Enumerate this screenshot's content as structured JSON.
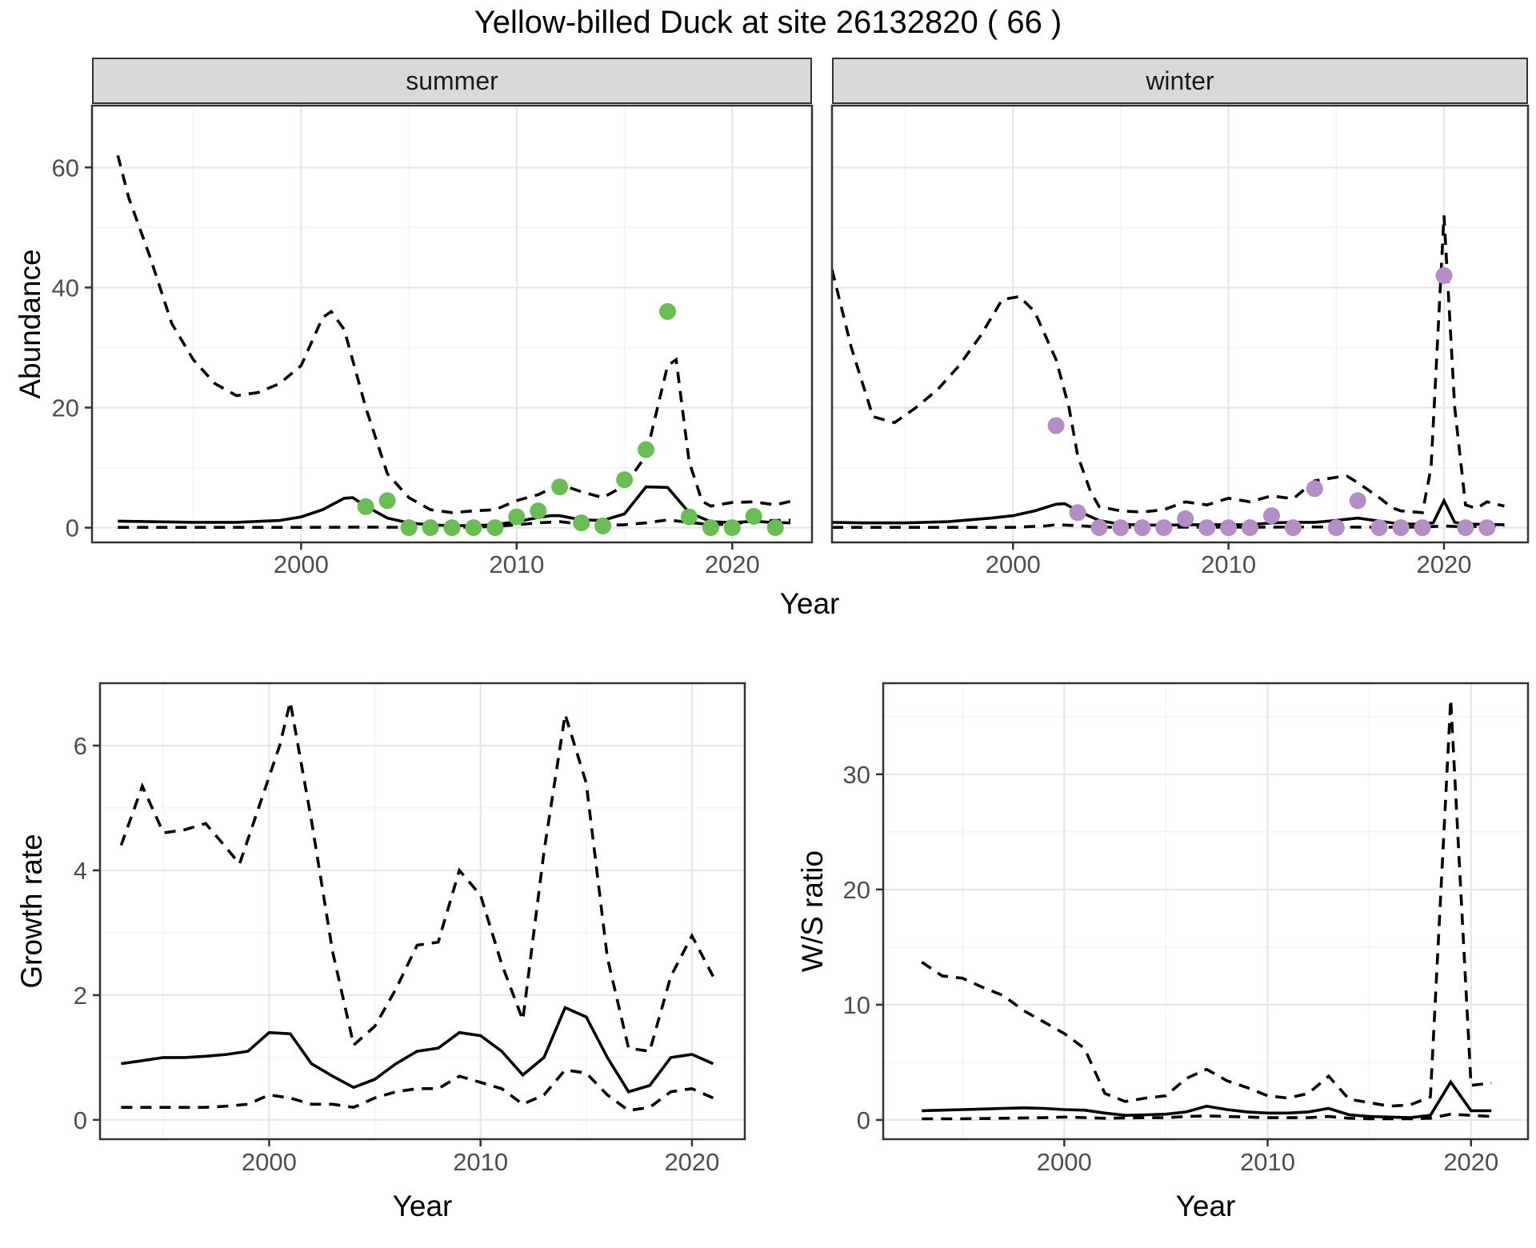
{
  "page": {
    "title": "Yellow-billed Duck at site 26132820 ( 66 )"
  },
  "colors": {
    "summer_point": "#6abd54",
    "winter_point": "#b48cc6",
    "line": "#000000",
    "panel_border": "#333333",
    "grid_major": "#e7e7e7",
    "grid_minor": "#f3f3f3",
    "strip_fill": "#d9d9d9",
    "tick_text": "#4d4d4d"
  },
  "axis_titles": {
    "abundance": "Abundance",
    "year_top": "Year",
    "growth": "Growth rate",
    "year_bottom_left": "Year",
    "ws": "W/S ratio",
    "year_bottom_right": "Year"
  },
  "facets": {
    "summer": "summer",
    "winter": "winter"
  },
  "chart_data": [
    {
      "id": "summer",
      "type": "line",
      "facet_label": "summer",
      "xlabel": "Year",
      "ylabel": "Abundance",
      "xlim": [
        1990.3,
        2023.7
      ],
      "ylim": [
        -2.45,
        70.3
      ],
      "x_ticks": [
        2000,
        2010,
        2020
      ],
      "x_minor": [
        1995,
        2005,
        2015
      ],
      "y_ticks": [
        0,
        20,
        40,
        60
      ],
      "y_minor": [
        10,
        30,
        50
      ],
      "show_y_labels": true,
      "series": [
        {
          "name": "upper_ci",
          "style": "dashed",
          "x": [
            1991.5,
            1992,
            1993,
            1994,
            1995,
            1996,
            1997,
            1998,
            1999,
            2000,
            2001,
            2001.4,
            2002,
            2003,
            2004,
            2005,
            2006,
            2007,
            2008,
            2009,
            2010,
            2011,
            2012,
            2013,
            2014,
            2015,
            2016,
            2017,
            2017.4,
            2018,
            2018.6,
            2019,
            2020,
            2021,
            2022,
            2022.7
          ],
          "y": [
            62,
            55,
            45,
            34,
            28,
            24,
            22,
            22.5,
            24,
            27,
            35,
            36,
            33,
            20,
            9,
            5,
            3,
            2.5,
            2.8,
            3,
            4.5,
            5.5,
            7.2,
            6,
            5,
            7,
            12,
            27,
            28,
            11,
            4.4,
            3.6,
            4.2,
            4.3,
            3.8,
            4.4
          ]
        },
        {
          "name": "fit",
          "style": "solid",
          "x": [
            1991.5,
            1993,
            1995,
            1997,
            1999,
            2000,
            2001,
            2002,
            2002.4,
            2003,
            2004,
            2005,
            2006,
            2007,
            2008,
            2009,
            2010,
            2011,
            2011.6,
            2012,
            2013,
            2014,
            2015,
            2016,
            2017,
            2018,
            2019,
            2020,
            2021,
            2022,
            2022.7
          ],
          "y": [
            1.1,
            1.0,
            0.9,
            0.9,
            1.2,
            1.8,
            3.0,
            4.9,
            5.0,
            3.6,
            1.6,
            0.8,
            0.45,
            0.35,
            0.35,
            0.5,
            1.0,
            1.7,
            2.0,
            2.0,
            1.3,
            1.2,
            2.3,
            6.8,
            6.7,
            2.5,
            1.0,
            0.85,
            1.05,
            0.85,
            0.8
          ]
        },
        {
          "name": "lower_ci",
          "style": "dashed",
          "x": [
            1991.5,
            1995,
            2000,
            2003,
            2005,
            2008,
            2009,
            2010,
            2011,
            2012,
            2013,
            2014,
            2015,
            2016,
            2017,
            2018,
            2019,
            2020,
            2021,
            2022,
            2022.7
          ],
          "y": [
            0.05,
            0.05,
            0.05,
            0.1,
            0.05,
            0.1,
            0.2,
            0.5,
            0.8,
            1.0,
            0.6,
            0.35,
            0.5,
            0.8,
            1.3,
            0.9,
            0.5,
            0.6,
            1.1,
            1.2,
            1.25
          ]
        }
      ],
      "points": {
        "name": "observed_summer",
        "color_key": "summer_point",
        "x": [
          2003,
          2004,
          2005,
          2006,
          2007,
          2008,
          2009,
          2010,
          2011,
          2012,
          2013,
          2014,
          2015,
          2016,
          2017,
          2018,
          2019,
          2020,
          2021,
          2022
        ],
        "y": [
          3.5,
          4.5,
          0,
          0,
          0,
          0,
          0,
          1.8,
          2.8,
          6.8,
          0.8,
          0.3,
          8,
          13,
          36,
          1.8,
          0,
          0,
          1.9,
          0
        ]
      }
    },
    {
      "id": "winter",
      "type": "line",
      "facet_label": "winter",
      "xlabel": "Year",
      "ylabel": "Abundance",
      "xlim": [
        1991.6,
        2023.9
      ],
      "ylim": [
        -2.45,
        70.3
      ],
      "x_ticks": [
        2000,
        2010,
        2020
      ],
      "x_minor": [
        1995,
        2005,
        2015
      ],
      "y_ticks": [
        0,
        20,
        40,
        60
      ],
      "y_minor": [
        10,
        30,
        50
      ],
      "show_y_labels": false,
      "series": [
        {
          "name": "upper_ci",
          "style": "dashed",
          "x": [
            1991.6,
            1992.5,
            1993.5,
            1994.5,
            1995.5,
            1996.5,
            1997.5,
            1998.5,
            1999.5,
            2000.3,
            2001,
            2002,
            2002.6,
            2003,
            2003.6,
            2004,
            2005,
            2006,
            2007,
            2008,
            2009,
            2010,
            2011,
            2012,
            2013,
            2014,
            2015,
            2015.5,
            2016,
            2017,
            2017.6,
            2018,
            2019,
            2019.4,
            2020,
            2020.5,
            2021,
            2021.5,
            2022,
            2022.8
          ],
          "y": [
            43,
            30,
            18.5,
            17.5,
            20,
            23,
            27,
            32,
            38,
            38.5,
            36,
            28,
            20,
            12,
            6,
            3.5,
            2.8,
            2.6,
            3.0,
            4.3,
            3.8,
            4.9,
            4.3,
            5.3,
            4.8,
            7.8,
            8.4,
            8.6,
            7.5,
            5.0,
            3.3,
            2.8,
            2.5,
            10,
            52,
            20,
            3.8,
            3.2,
            4.3,
            3.6
          ]
        },
        {
          "name": "fit",
          "style": "solid",
          "x": [
            1991.6,
            1993,
            1995,
            1997,
            1999,
            2000,
            2001,
            2002,
            2002.4,
            2003,
            2004,
            2005,
            2006,
            2007,
            2008,
            2009,
            2010,
            2011,
            2012,
            2013,
            2014,
            2015,
            2016,
            2017,
            2018,
            2019,
            2019.5,
            2020,
            2020.5,
            2021,
            2022,
            2022.8
          ],
          "y": [
            0.9,
            0.8,
            0.8,
            1.0,
            1.6,
            2.0,
            2.8,
            3.9,
            4.0,
            2.8,
            1.2,
            0.55,
            0.45,
            0.4,
            0.5,
            0.5,
            0.5,
            0.5,
            0.8,
            0.9,
            0.9,
            1.2,
            1.6,
            1.1,
            0.6,
            0.6,
            0.8,
            4.5,
            0.9,
            0.6,
            0.55,
            0.5
          ]
        },
        {
          "name": "lower_ci",
          "style": "dashed",
          "x": [
            1991.6,
            1995,
            2000,
            2001.5,
            2002,
            2003,
            2004,
            2006,
            2008,
            2010,
            2012,
            2014,
            2016,
            2018,
            2019,
            2020,
            2021,
            2022,
            2022.8
          ],
          "y": [
            0.05,
            0.05,
            0.05,
            0.3,
            0.5,
            0.35,
            0.1,
            0.08,
            0.1,
            0.08,
            0.1,
            0.12,
            0.1,
            0.1,
            0.1,
            0.3,
            0.12,
            0.3,
            0.32
          ]
        }
      ],
      "points": {
        "name": "observed_winter",
        "color_key": "winter_point",
        "x": [
          2002,
          2003,
          2004,
          2005,
          2006,
          2007,
          2008,
          2009,
          2010,
          2011,
          2012,
          2013,
          2014,
          2015,
          2016,
          2017,
          2018,
          2019,
          2020,
          2021,
          2022
        ],
        "y": [
          17,
          2.5,
          0,
          0,
          0,
          0,
          1.5,
          0,
          0,
          0,
          2,
          0,
          6.5,
          0,
          4.5,
          0,
          0,
          0,
          42,
          0,
          0
        ]
      }
    },
    {
      "id": "growth",
      "type": "line",
      "facet_label": "",
      "xlabel": "Year",
      "ylabel": "Growth rate",
      "xlim": [
        1992.0,
        2022.5
      ],
      "ylim": [
        -0.31,
        7.0
      ],
      "x_ticks": [
        2000,
        2010,
        2020
      ],
      "x_minor": [
        1995,
        2005,
        2015
      ],
      "y_ticks": [
        0,
        2,
        4,
        6
      ],
      "y_minor": [
        1,
        3,
        5
      ],
      "show_y_labels": true,
      "series": [
        {
          "name": "upper_ci",
          "style": "dashed",
          "x": [
            1993,
            1994,
            1995,
            1996,
            1997,
            1998,
            1998.6,
            1999.5,
            2000.5,
            2001,
            2002,
            2003,
            2004,
            2005,
            2006,
            2007,
            2008,
            2009,
            2010,
            2011,
            2012,
            2013,
            2014,
            2015,
            2016,
            2017,
            2018,
            2019,
            2020,
            2021
          ],
          "y": [
            4.4,
            5.35,
            4.6,
            4.65,
            4.75,
            4.35,
            4.1,
            5.0,
            6.0,
            6.7,
            4.8,
            2.7,
            1.2,
            1.5,
            2.1,
            2.8,
            2.85,
            4.0,
            3.6,
            2.5,
            1.6,
            4.3,
            6.5,
            5.4,
            2.6,
            1.15,
            1.1,
            2.3,
            2.95,
            2.3
          ]
        },
        {
          "name": "fit",
          "style": "solid",
          "x": [
            1993,
            1994,
            1995,
            1996,
            1997,
            1998,
            1999,
            2000,
            2001,
            2002,
            2003,
            2004,
            2005,
            2006,
            2007,
            2008,
            2009,
            2010,
            2011,
            2012,
            2013,
            2014,
            2015,
            2016,
            2017,
            2018,
            2019,
            2020,
            2021
          ],
          "y": [
            0.9,
            0.95,
            1.0,
            1.0,
            1.02,
            1.05,
            1.1,
            1.4,
            1.38,
            0.9,
            0.7,
            0.52,
            0.65,
            0.9,
            1.1,
            1.15,
            1.4,
            1.35,
            1.1,
            0.72,
            1.0,
            1.8,
            1.65,
            1.0,
            0.45,
            0.55,
            1.0,
            1.05,
            0.9
          ]
        },
        {
          "name": "lower_ci",
          "style": "dashed",
          "x": [
            1993,
            1994,
            1995,
            1996,
            1997,
            1998,
            1999,
            2000,
            2001,
            2002,
            2003,
            2004,
            2005,
            2006,
            2007,
            2008,
            2009,
            2010,
            2011,
            2012,
            2013,
            2014,
            2015,
            2016,
            2017,
            2018,
            2019,
            2020,
            2021
          ],
          "y": [
            0.2,
            0.2,
            0.2,
            0.2,
            0.2,
            0.22,
            0.25,
            0.4,
            0.35,
            0.25,
            0.25,
            0.2,
            0.35,
            0.45,
            0.5,
            0.5,
            0.7,
            0.6,
            0.5,
            0.25,
            0.4,
            0.8,
            0.75,
            0.4,
            0.15,
            0.2,
            0.45,
            0.5,
            0.35
          ]
        }
      ],
      "points": null
    },
    {
      "id": "ws",
      "type": "line",
      "facet_label": "",
      "xlabel": "Year",
      "ylabel": "W/S ratio",
      "xlim": [
        1991.1,
        2022.8
      ],
      "ylim": [
        -1.67,
        37.9
      ],
      "x_ticks": [
        2000,
        2010,
        2020
      ],
      "x_minor": [
        1995,
        2005,
        2015
      ],
      "y_ticks": [
        0,
        10,
        20,
        30
      ],
      "y_minor": [
        5,
        15,
        25,
        35
      ],
      "show_y_labels": true,
      "series": [
        {
          "name": "upper_ci",
          "style": "dashed",
          "x": [
            1993,
            1994,
            1995,
            1996,
            1997,
            1998,
            1999,
            2000,
            2001,
            2002,
            2003,
            2004,
            2005,
            2006,
            2007,
            2008,
            2009,
            2010,
            2011,
            2012,
            2013,
            2014,
            2015,
            2016,
            2017,
            2018,
            2019,
            2020,
            2021
          ],
          "y": [
            13.7,
            12.5,
            12.3,
            11.5,
            10.8,
            9.5,
            8.5,
            7.5,
            6.2,
            2.3,
            1.6,
            1.9,
            2.1,
            3.6,
            4.4,
            3.4,
            2.8,
            2.1,
            1.9,
            2.3,
            3.8,
            1.8,
            1.5,
            1.2,
            1.3,
            2.0,
            36.5,
            3.0,
            3.2
          ]
        },
        {
          "name": "fit",
          "style": "solid",
          "x": [
            1993,
            1994,
            1995,
            1996,
            1997,
            1998,
            1999,
            2000,
            2001,
            2002,
            2003,
            2004,
            2005,
            2006,
            2007,
            2008,
            2009,
            2010,
            2011,
            2012,
            2013,
            2014,
            2015,
            2016,
            2017,
            2018,
            2019,
            2020,
            2021
          ],
          "y": [
            0.8,
            0.85,
            0.9,
            0.95,
            1.0,
            1.05,
            1.0,
            0.9,
            0.85,
            0.6,
            0.4,
            0.45,
            0.5,
            0.7,
            1.2,
            0.9,
            0.7,
            0.6,
            0.6,
            0.7,
            1.0,
            0.45,
            0.3,
            0.25,
            0.2,
            0.4,
            3.3,
            0.8,
            0.8
          ]
        },
        {
          "name": "lower_ci",
          "style": "dashed",
          "x": [
            1993,
            1995,
            1997,
            1999,
            2000,
            2002,
            2004,
            2005,
            2006,
            2007,
            2008,
            2009,
            2010,
            2011,
            2012,
            2013,
            2014,
            2015,
            2016,
            2017,
            2018,
            2019,
            2020,
            2021
          ],
          "y": [
            0.1,
            0.1,
            0.15,
            0.2,
            0.25,
            0.15,
            0.2,
            0.2,
            0.3,
            0.35,
            0.3,
            0.25,
            0.2,
            0.2,
            0.2,
            0.3,
            0.15,
            0.1,
            0.1,
            0.1,
            0.15,
            0.5,
            0.4,
            0.3
          ]
        }
      ],
      "points": null
    }
  ]
}
